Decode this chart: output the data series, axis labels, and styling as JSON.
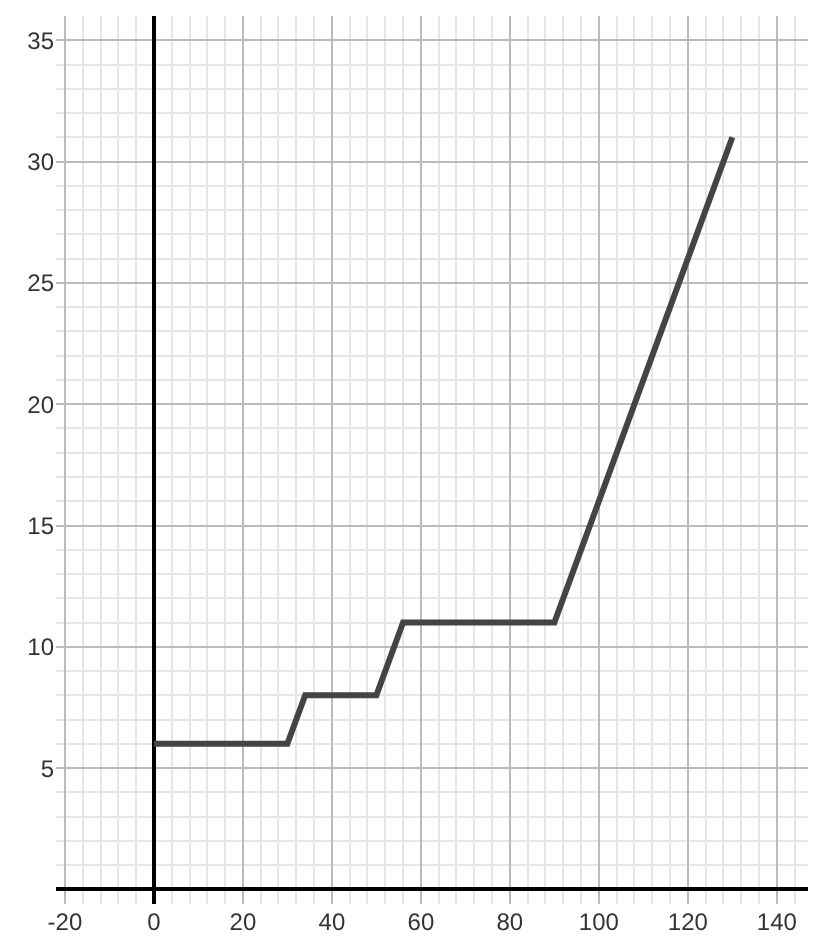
{
  "chart_data": {
    "type": "line",
    "x": [
      0,
      30,
      34,
      50,
      56,
      90,
      130
    ],
    "values": [
      6,
      6,
      8,
      8,
      11,
      11,
      31
    ],
    "color": "#444444",
    "xlim": [
      -22,
      147
    ],
    "xticks": [
      -20,
      0,
      20,
      40,
      60,
      80,
      100,
      120,
      140
    ],
    "ylim": [
      -0.6,
      36
    ],
    "yticks": [
      5,
      10,
      15,
      20,
      25,
      30,
      35
    ],
    "grid": true,
    "marker": "none",
    "line_style": "solid"
  }
}
